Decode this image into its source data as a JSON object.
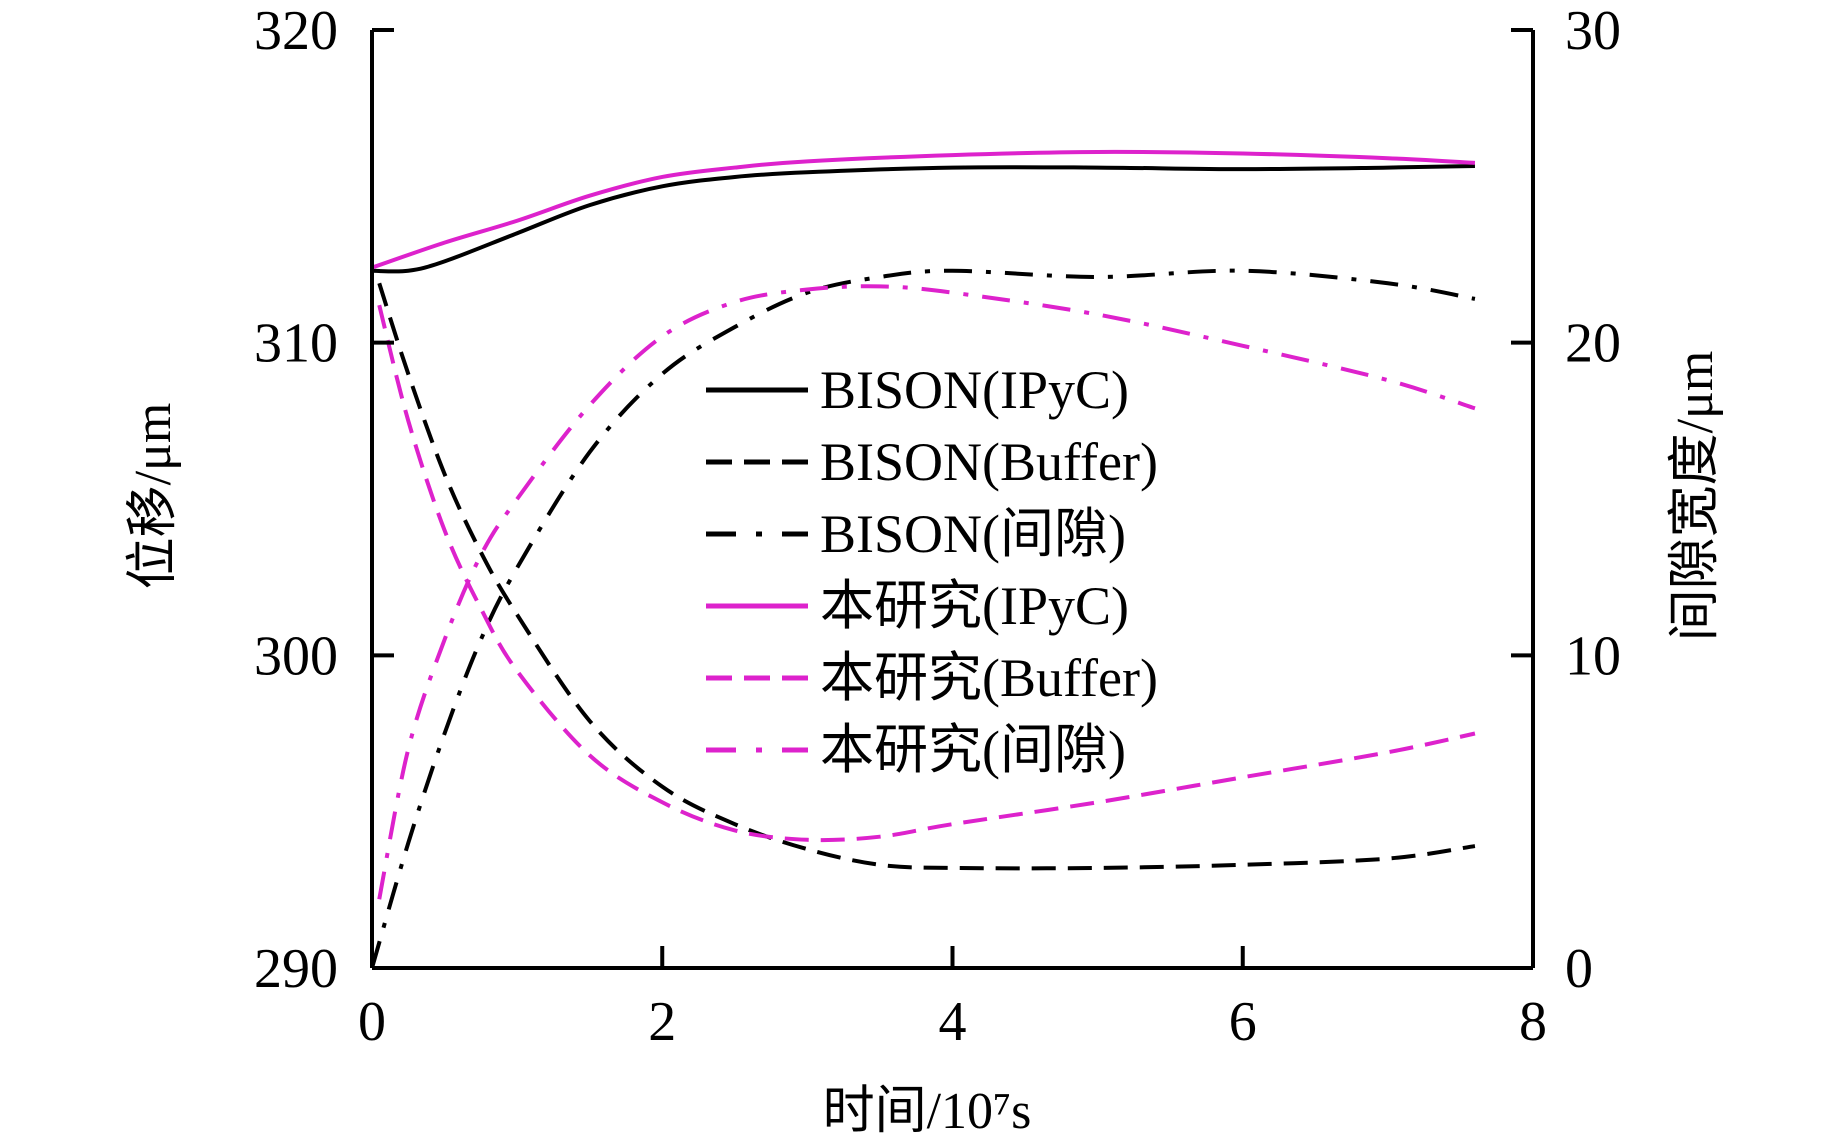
{
  "chart_data": {
    "type": "line",
    "xlabel": "时间/10⁷s",
    "ylabel_left": "位移/μm",
    "ylabel_right": "间隙宽度/μm",
    "xlim": [
      0,
      8
    ],
    "ylim_left": [
      290,
      320
    ],
    "ylim_right": [
      0,
      30
    ],
    "xticks": [
      "0",
      "2",
      "4",
      "6",
      "8"
    ],
    "yticks_left": [
      "290",
      "300",
      "310",
      "320"
    ],
    "yticks_right": [
      "0",
      "10",
      "20",
      "30"
    ],
    "grid": false,
    "legend_placement": "center",
    "colors": {
      "bison": "#000000",
      "this_study": "#dd22cc"
    },
    "series": [
      {
        "name": "BISON(IPyC)",
        "axis": "left",
        "style": "solid",
        "color": "#000000",
        "x": [
          0,
          0.25,
          0.5,
          1,
          1.5,
          2,
          2.5,
          3,
          4,
          5,
          6,
          7,
          7.6
        ],
        "y": [
          312.3,
          312.3,
          312.6,
          313.5,
          314.4,
          315.0,
          315.3,
          315.45,
          315.6,
          315.6,
          315.55,
          315.6,
          315.65
        ]
      },
      {
        "name": "BISON(Buffer)",
        "axis": "left",
        "style": "dashed",
        "color": "#000000",
        "x": [
          0.05,
          0.25,
          0.5,
          0.75,
          1,
          1.5,
          2,
          2.5,
          3,
          3.5,
          4,
          5,
          6,
          7,
          7.6
        ],
        "y": [
          311.9,
          309.0,
          305.8,
          303.3,
          301.3,
          297.9,
          295.8,
          294.6,
          293.8,
          293.3,
          293.2,
          293.2,
          293.3,
          293.5,
          293.9
        ]
      },
      {
        "name": "BISON(间隙)",
        "axis": "right",
        "style": "dashdot",
        "color": "#000000",
        "x": [
          0,
          0.25,
          0.5,
          0.75,
          1,
          1.5,
          2,
          2.5,
          3,
          3.5,
          4,
          5,
          6,
          7,
          7.6
        ],
        "y": [
          0,
          4.0,
          7.5,
          10.5,
          12.8,
          16.5,
          19.0,
          20.5,
          21.6,
          22.1,
          22.3,
          22.1,
          22.3,
          21.9,
          21.4
        ]
      },
      {
        "name": "本研究(IPyC)",
        "axis": "left",
        "style": "solid",
        "color": "#dd22cc",
        "x": [
          0,
          0.5,
          1,
          1.5,
          2,
          2.5,
          3,
          4,
          5,
          6,
          7,
          7.6
        ],
        "y": [
          312.4,
          313.2,
          313.9,
          314.7,
          315.3,
          315.6,
          315.8,
          316.0,
          316.1,
          316.05,
          315.9,
          315.75
        ]
      },
      {
        "name": "本研究(Buffer)",
        "axis": "left",
        "style": "dashed",
        "color": "#dd22cc",
        "x": [
          0.05,
          0.25,
          0.5,
          0.75,
          1,
          1.5,
          2,
          2.5,
          3,
          3.5,
          4,
          5,
          6,
          7,
          7.6
        ],
        "y": [
          311.2,
          307.5,
          304.0,
          301.5,
          299.5,
          296.8,
          295.3,
          294.4,
          294.1,
          294.2,
          294.6,
          295.3,
          296.1,
          296.9,
          297.5
        ]
      },
      {
        "name": "本研究(间隙)",
        "axis": "right",
        "style": "dashdot",
        "color": "#dd22cc",
        "x": [
          0.05,
          0.25,
          0.5,
          0.75,
          1,
          1.5,
          2,
          2.5,
          3,
          3.5,
          4,
          5,
          6,
          7,
          7.6
        ],
        "y": [
          2.2,
          7.0,
          10.5,
          13.2,
          15.0,
          18.0,
          20.2,
          21.3,
          21.7,
          21.8,
          21.6,
          20.9,
          19.9,
          18.8,
          17.9
        ]
      }
    ]
  }
}
